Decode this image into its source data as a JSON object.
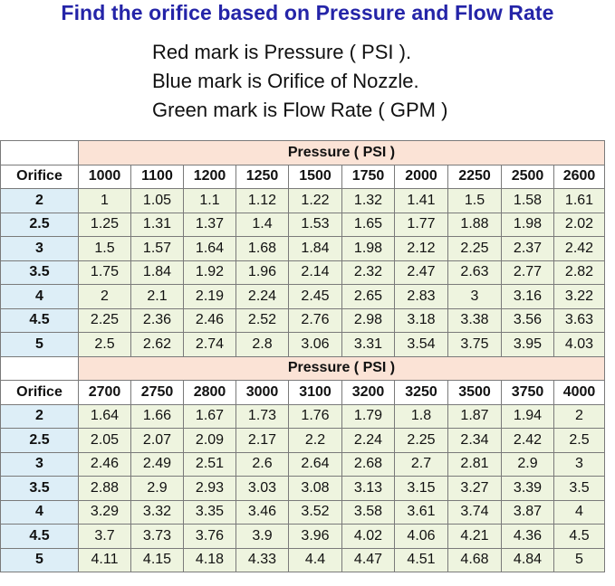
{
  "title": "Find the orifice based on Pressure and Flow Rate",
  "legend": [
    "Red mark is Pressure ( PSI ).",
    "Blue mark is Orifice of Nozzle.",
    "Green mark is Flow Rate ( GPM )"
  ],
  "tables": [
    {
      "pressure_header": "Pressure ( PSI )",
      "orifice_label": "Orifice",
      "pressures": [
        "1000",
        "1100",
        "1200",
        "1250",
        "1500",
        "1750",
        "2000",
        "2250",
        "2500",
        "2600"
      ],
      "rows": [
        {
          "orifice": "2",
          "flows": [
            "1",
            "1.05",
            "1.1",
            "1.12",
            "1.22",
            "1.32",
            "1.41",
            "1.5",
            "1.58",
            "1.61"
          ]
        },
        {
          "orifice": "2.5",
          "flows": [
            "1.25",
            "1.31",
            "1.37",
            "1.4",
            "1.53",
            "1.65",
            "1.77",
            "1.88",
            "1.98",
            "2.02"
          ]
        },
        {
          "orifice": "3",
          "flows": [
            "1.5",
            "1.57",
            "1.64",
            "1.68",
            "1.84",
            "1.98",
            "2.12",
            "2.25",
            "2.37",
            "2.42"
          ]
        },
        {
          "orifice": "3.5",
          "flows": [
            "1.75",
            "1.84",
            "1.92",
            "1.96",
            "2.14",
            "2.32",
            "2.47",
            "2.63",
            "2.77",
            "2.82"
          ]
        },
        {
          "orifice": "4",
          "flows": [
            "2",
            "2.1",
            "2.19",
            "2.24",
            "2.45",
            "2.65",
            "2.83",
            "3",
            "3.16",
            "3.22"
          ]
        },
        {
          "orifice": "4.5",
          "flows": [
            "2.25",
            "2.36",
            "2.46",
            "2.52",
            "2.76",
            "2.98",
            "3.18",
            "3.38",
            "3.56",
            "3.63"
          ]
        },
        {
          "orifice": "5",
          "flows": [
            "2.5",
            "2.62",
            "2.74",
            "2.8",
            "3.06",
            "3.31",
            "3.54",
            "3.75",
            "3.95",
            "4.03"
          ]
        }
      ]
    },
    {
      "pressure_header": "Pressure ( PSI )",
      "orifice_label": "Orifice",
      "pressures": [
        "2700",
        "2750",
        "2800",
        "3000",
        "3100",
        "3200",
        "3250",
        "3500",
        "3750",
        "4000"
      ],
      "rows": [
        {
          "orifice": "2",
          "flows": [
            "1.64",
            "1.66",
            "1.67",
            "1.73",
            "1.76",
            "1.79",
            "1.8",
            "1.87",
            "1.94",
            "2"
          ]
        },
        {
          "orifice": "2.5",
          "flows": [
            "2.05",
            "2.07",
            "2.09",
            "2.17",
            "2.2",
            "2.24",
            "2.25",
            "2.34",
            "2.42",
            "2.5"
          ]
        },
        {
          "orifice": "3",
          "flows": [
            "2.46",
            "2.49",
            "2.51",
            "2.6",
            "2.64",
            "2.68",
            "2.7",
            "2.81",
            "2.9",
            "3"
          ]
        },
        {
          "orifice": "3.5",
          "flows": [
            "2.88",
            "2.9",
            "2.93",
            "3.03",
            "3.08",
            "3.13",
            "3.15",
            "3.27",
            "3.39",
            "3.5"
          ]
        },
        {
          "orifice": "4",
          "flows": [
            "3.29",
            "3.32",
            "3.35",
            "3.46",
            "3.52",
            "3.58",
            "3.61",
            "3.74",
            "3.87",
            "4"
          ]
        },
        {
          "orifice": "4.5",
          "flows": [
            "3.7",
            "3.73",
            "3.76",
            "3.9",
            "3.96",
            "4.02",
            "4.06",
            "4.21",
            "4.36",
            "4.5"
          ]
        },
        {
          "orifice": "5",
          "flows": [
            "4.11",
            "4.15",
            "4.18",
            "4.33",
            "4.4",
            "4.47",
            "4.51",
            "4.68",
            "4.84",
            "5"
          ]
        }
      ]
    }
  ],
  "colors": {
    "title": "#2424a8",
    "pressure_header_bg": "#fbe3d6",
    "orifice_bg": "#ddeef7",
    "flow_bg": "#eef4df"
  }
}
